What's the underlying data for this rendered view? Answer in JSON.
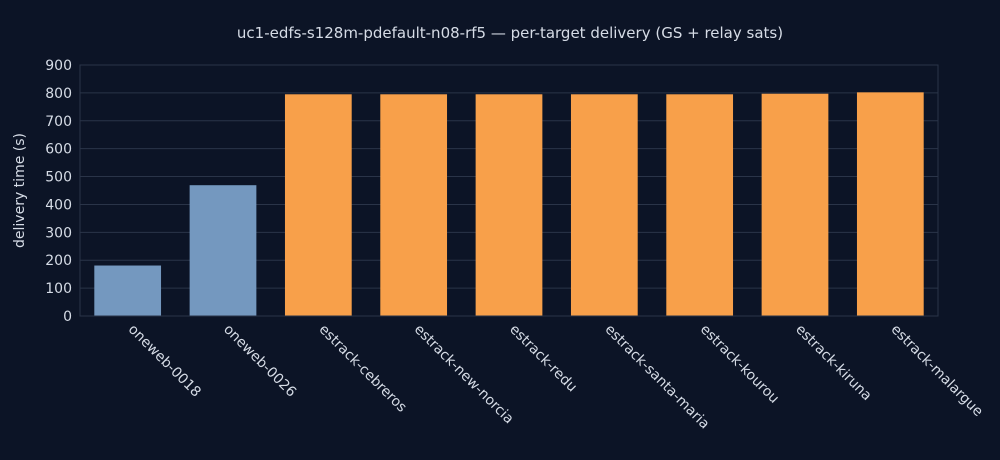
{
  "chart_data": {
    "type": "bar",
    "title": "uc1-edfs-s128m-pdefault-n08-rf5 — per-target delivery (GS + relay sats)",
    "xlabel": "",
    "ylabel": "delivery time (s)",
    "ylim": [
      0,
      900
    ],
    "yticks": [
      0,
      100,
      200,
      300,
      400,
      500,
      600,
      700,
      800,
      900
    ],
    "grid": true,
    "categories": [
      "oneweb-0018",
      "oneweb-0026",
      "estrack-cebreros",
      "estrack-new-norcia",
      "estrack-redu",
      "estrack-santa-maria",
      "estrack-kourou",
      "estrack-kiruna",
      "estrack-malargue"
    ],
    "values": [
      181,
      469,
      795,
      795,
      795,
      795,
      795,
      797,
      802
    ],
    "bar_colors": [
      "#7498bf",
      "#7498bf",
      "#f8a04a",
      "#f8a04a",
      "#f8a04a",
      "#f8a04a",
      "#f8a04a",
      "#f8a04a",
      "#f8a04a"
    ]
  }
}
